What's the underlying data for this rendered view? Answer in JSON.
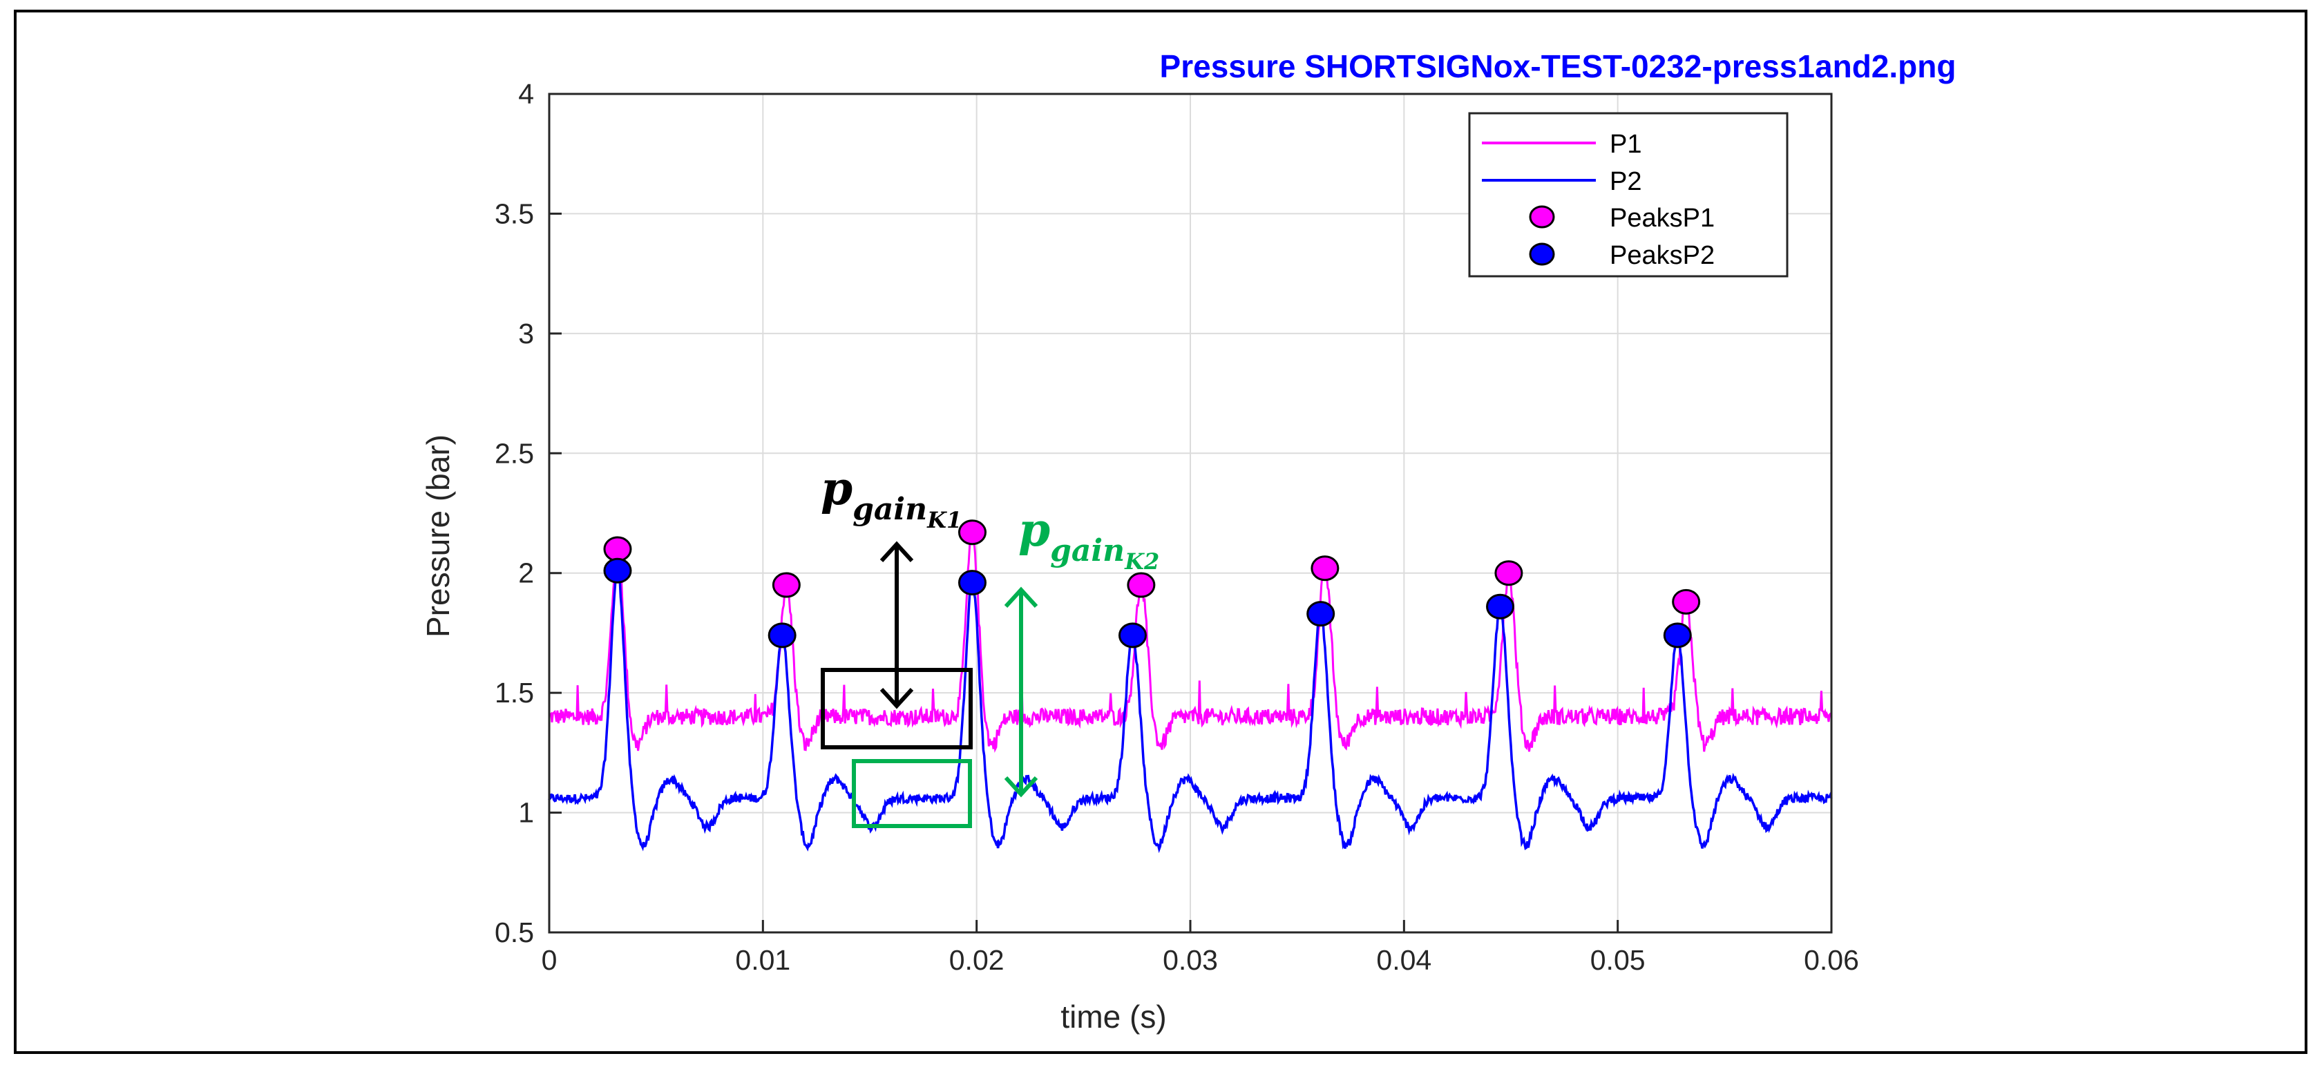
{
  "colors": {
    "p1": "#ff00ff",
    "p2": "#0000ff",
    "title": "#0000ff",
    "annotation_k1": "#000000",
    "annotation_k2": "#00b050",
    "grid": "#dcdcdc",
    "axis": "#262626"
  },
  "chart_data": {
    "type": "line",
    "title": "Pressure SHORTSIGNox-TEST-0232-press1and2.png",
    "xlabel": "time (s)",
    "ylabel": "Pressure (bar)",
    "xlim": [
      0,
      0.06
    ],
    "ylim": [
      0.5,
      4
    ],
    "xticks": [
      0,
      0.01,
      0.02,
      0.03,
      0.04,
      0.05,
      0.06
    ],
    "xtick_labels": [
      "0",
      "0.01",
      "0.02",
      "0.03",
      "0.04",
      "0.05",
      "0.06"
    ],
    "yticks": [
      0.5,
      1,
      1.5,
      2,
      2.5,
      3,
      3.5,
      4
    ],
    "ytick_labels": [
      "0.5",
      "1",
      "1.5",
      "2",
      "2.5",
      "3",
      "3.5",
      "4"
    ],
    "grid": true,
    "legend_position": "top-right",
    "legend": [
      "P1",
      "P2",
      "PeaksP1",
      "PeaksP2"
    ],
    "series": [
      {
        "name": "P1",
        "baseline": 1.4,
        "noise": 0.035
      },
      {
        "name": "P2",
        "baseline": 1.06,
        "noise": 0.018
      }
    ],
    "peaks": [
      {
        "name": "PeaksP1",
        "x": [
          0.0032,
          0.0111,
          0.0198,
          0.0277,
          0.0363,
          0.0449,
          0.0532
        ],
        "y": [
          2.1,
          1.95,
          2.17,
          1.95,
          2.02,
          2.0,
          1.88
        ]
      },
      {
        "name": "PeaksP2",
        "x": [
          0.0032,
          0.0109,
          0.0198,
          0.0273,
          0.0361,
          0.0445,
          0.0528
        ],
        "y": [
          2.01,
          1.74,
          1.96,
          1.74,
          1.83,
          1.86,
          1.74
        ]
      }
    ],
    "annotations": [
      {
        "label_main": "p",
        "label_sub": "gain",
        "label_subsub": "K1",
        "x": 0.0162
      },
      {
        "label_main": "p",
        "label_sub": "gain",
        "label_subsub": "K2",
        "x": 0.0218
      }
    ]
  }
}
